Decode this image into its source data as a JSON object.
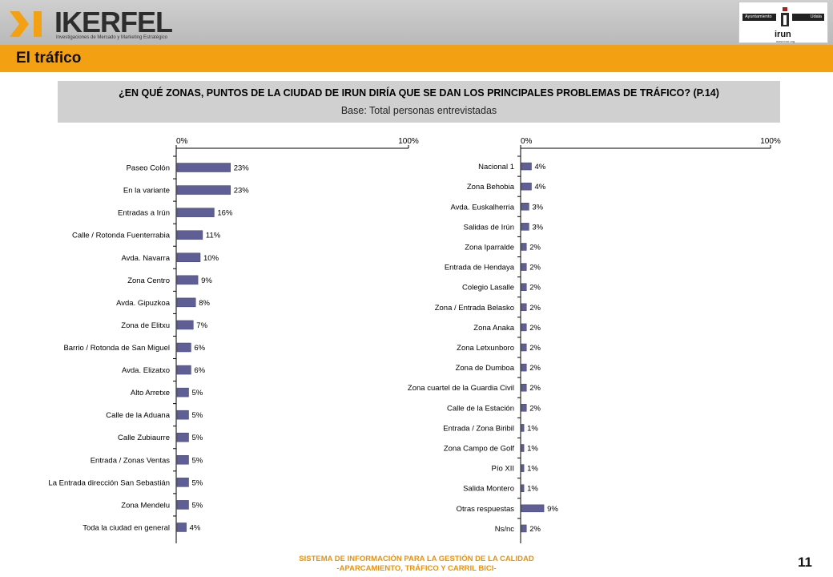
{
  "header": {
    "brand": "IKERFEL",
    "brand_tagline": "Investigaciones de Mercado y Marketing Estratégico",
    "client_left": "Ayuntamiento",
    "client_right": "Udala",
    "client_name": "irun",
    "client_url": "www.irun.org"
  },
  "section_title": "El tráfico",
  "question": "¿EN QUÉ ZONAS, PUNTOS DE LA CIUDAD DE IRUN DIRÍA QUE SE DAN LOS PRINCIPALES PROBLEMAS DE TRÁFICO? (P.14)",
  "base": "Base: Total personas entrevistadas",
  "chart_data": [
    {
      "type": "bar",
      "orientation": "horizontal",
      "axis_ticks": [
        "0%",
        "100%"
      ],
      "xlim": [
        0,
        100
      ],
      "categories": [
        "Paseo Colón",
        "En la variante",
        "Entradas a Irún",
        "Calle / Rotonda Fuenterrabia",
        "Avda. Navarra",
        "Zona Centro",
        "Avda. Gipuzkoa",
        "Zona de Elitxu",
        "Barrio / Rotonda de San Miguel",
        "Avda. Elizatxo",
        "Alto Arretxe",
        "Calle de la Aduana",
        "Calle Zubiaurre",
        "Entrada / Zonas Ventas",
        "La Entrada dirección San Sebastián",
        "Zona Mendelu",
        "Toda la ciudad en general"
      ],
      "values": [
        23,
        23,
        16,
        11,
        10,
        9,
        8,
        7,
        6,
        6,
        5,
        5,
        5,
        5,
        5,
        5,
        4
      ],
      "labels": [
        "23%",
        "23%",
        "16%",
        "11%",
        "10%",
        "9%",
        "8%",
        "7%",
        "6%",
        "6%",
        "5%",
        "5%",
        "5%",
        "5%",
        "5%",
        "5%",
        "4%"
      ],
      "bar_color": "#5f5f95"
    },
    {
      "type": "bar",
      "orientation": "horizontal",
      "axis_ticks": [
        "0%",
        "100%"
      ],
      "xlim": [
        0,
        100
      ],
      "categories": [
        "Nacional 1",
        "Zona Behobia",
        "Avda. Euskalherria",
        "Salidas de Irún",
        "Zona Iparralde",
        "Entrada de Hendaya",
        "Colegio Lasalle",
        "Zona / Entrada Belasko",
        "Zona Anaka",
        "Zona Letxunboro",
        "Zona de Dumboa",
        "Zona cuartel de la Guardia Civil",
        "Calle de la Estación",
        "Entrada / Zona Biribil",
        "Zona Campo de Golf",
        "Pío XII",
        "Salida Montero",
        "Otras respuestas",
        "Ns/nc"
      ],
      "values": [
        4,
        4,
        3,
        3,
        2,
        2,
        2,
        2,
        2,
        2,
        2,
        2,
        2,
        1,
        1,
        1,
        1,
        9,
        2
      ],
      "labels": [
        "4%",
        "4%",
        "3%",
        "3%",
        "2%",
        "2%",
        "2%",
        "2%",
        "2%",
        "2%",
        "2%",
        "2%",
        "2%",
        "1%",
        "1%",
        "1%",
        "1%",
        "9%",
        "2%"
      ],
      "bar_color": "#5f5f95"
    }
  ],
  "footer": {
    "line1": "SISTEMA DE INFORMACIÓN PARA LA GESTIÓN DE LA CALIDAD",
    "line2": "-APARCAMIENTO, TRÁFICO Y CARRIL BICI-"
  },
  "page_number": "11"
}
